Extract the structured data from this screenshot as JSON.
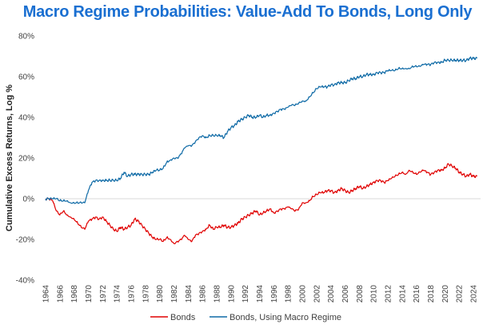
{
  "chart_data": {
    "type": "line",
    "title": "Macro Regime Probabilities: Value-Add To Bonds, Long Only",
    "xlabel": "",
    "ylabel": "Cumulative Excess Returns, Log %",
    "xlim": [
      1964,
      2025
    ],
    "ylim": [
      -40,
      80
    ],
    "y_ticks": [
      "-40%",
      "-20%",
      "0%",
      "20%",
      "40%",
      "60%",
      "80%"
    ],
    "y_tick_values": [
      -40,
      -20,
      0,
      20,
      40,
      60,
      80
    ],
    "x_ticks": [
      "1964",
      "1966",
      "1968",
      "1970",
      "1972",
      "1974",
      "1976",
      "1978",
      "1980",
      "1982",
      "1984",
      "1986",
      "1988",
      "1990",
      "1992",
      "1994",
      "1996",
      "1998",
      "2000",
      "2002",
      "2004",
      "2006",
      "2008",
      "2010",
      "2012",
      "2014",
      "2016",
      "2018",
      "2020",
      "2022",
      "2024"
    ],
    "grid": false,
    "legend_position": "bottom",
    "series": [
      {
        "name": "Bonds",
        "color": "#e00000",
        "x": [
          1964.0,
          1964.5,
          1965.0,
          1965.5,
          1966.0,
          1966.5,
          1967.0,
          1967.5,
          1968.0,
          1968.5,
          1969.0,
          1969.5,
          1970.0,
          1970.5,
          1971.0,
          1971.5,
          1972.0,
          1972.5,
          1973.0,
          1973.5,
          1974.0,
          1974.5,
          1975.0,
          1975.5,
          1976.0,
          1976.5,
          1977.0,
          1977.5,
          1978.0,
          1978.5,
          1979.0,
          1979.5,
          1980.0,
          1980.5,
          1981.0,
          1981.5,
          1982.0,
          1982.5,
          1983.0,
          1983.5,
          1984.0,
          1984.5,
          1985.0,
          1985.5,
          1986.0,
          1986.5,
          1987.0,
          1987.5,
          1988.0,
          1988.5,
          1989.0,
          1989.5,
          1990.0,
          1990.5,
          1991.0,
          1991.5,
          1992.0,
          1992.5,
          1993.0,
          1993.5,
          1994.0,
          1994.5,
          1995.0,
          1995.5,
          1996.0,
          1996.5,
          1997.0,
          1997.5,
          1998.0,
          1998.5,
          1999.0,
          1999.5,
          2000.0,
          2000.5,
          2001.0,
          2001.5,
          2002.0,
          2002.5,
          2003.0,
          2003.5,
          2004.0,
          2004.5,
          2005.0,
          2005.5,
          2006.0,
          2006.5,
          2007.0,
          2007.5,
          2008.0,
          2008.5,
          2009.0,
          2009.5,
          2010.0,
          2010.5,
          2011.0,
          2011.5,
          2012.0,
          2012.5,
          2013.0,
          2013.5,
          2014.0,
          2014.5,
          2015.0,
          2015.5,
          2016.0,
          2016.5,
          2017.0,
          2017.5,
          2018.0,
          2018.5,
          2019.0,
          2019.5,
          2020.0,
          2020.5,
          2021.0,
          2021.5,
          2022.0,
          2022.5,
          2023.0,
          2023.5,
          2024.0,
          2024.5
        ],
        "values": [
          0,
          0,
          -1,
          -6,
          -8,
          -6,
          -8,
          -9,
          -10,
          -12,
          -14,
          -15,
          -11,
          -10,
          -9,
          -10,
          -9,
          -11,
          -13,
          -15,
          -16,
          -14,
          -15,
          -14,
          -13,
          -10,
          -11,
          -13,
          -15,
          -17,
          -19,
          -20,
          -20,
          -21,
          -19,
          -20,
          -22,
          -21,
          -20,
          -18,
          -20,
          -21,
          -18,
          -17,
          -16,
          -15,
          -13,
          -15,
          -14,
          -14,
          -13,
          -14,
          -14,
          -13,
          -12,
          -10,
          -9,
          -8,
          -7,
          -6,
          -8,
          -7,
          -6,
          -5,
          -7,
          -6,
          -5,
          -5,
          -4,
          -5,
          -6,
          -5,
          -2,
          -2,
          -1,
          1,
          2,
          3,
          3,
          4,
          4,
          3,
          4,
          5,
          4,
          3,
          4,
          5,
          6,
          5,
          6,
          7,
          8,
          9,
          9,
          8,
          9,
          10,
          11,
          12,
          13,
          12,
          14,
          13,
          12,
          13,
          14,
          13,
          12,
          13,
          14,
          14,
          15,
          17,
          16,
          15,
          13,
          12,
          11,
          12,
          11,
          11
        ]
      },
      {
        "name": "Bonds, Using Macro Regime",
        "color": "#0e6aa6",
        "x": [
          1964.0,
          1964.5,
          1965.0,
          1965.5,
          1966.0,
          1966.5,
          1967.0,
          1967.5,
          1968.0,
          1968.5,
          1969.0,
          1969.5,
          1970.0,
          1970.5,
          1971.0,
          1971.5,
          1972.0,
          1972.5,
          1973.0,
          1973.5,
          1974.0,
          1974.5,
          1975.0,
          1975.5,
          1976.0,
          1976.5,
          1977.0,
          1977.5,
          1978.0,
          1978.5,
          1979.0,
          1979.5,
          1980.0,
          1980.5,
          1981.0,
          1981.5,
          1982.0,
          1982.5,
          1983.0,
          1983.5,
          1984.0,
          1984.5,
          1985.0,
          1985.5,
          1986.0,
          1986.5,
          1987.0,
          1987.5,
          1988.0,
          1988.5,
          1989.0,
          1989.5,
          1990.0,
          1990.5,
          1991.0,
          1991.5,
          1992.0,
          1992.5,
          1993.0,
          1993.5,
          1994.0,
          1994.5,
          1995.0,
          1995.5,
          1996.0,
          1996.5,
          1997.0,
          1997.5,
          1998.0,
          1998.5,
          1999.0,
          1999.5,
          2000.0,
          2000.5,
          2001.0,
          2001.5,
          2002.0,
          2002.5,
          2003.0,
          2003.5,
          2004.0,
          2004.5,
          2005.0,
          2005.5,
          2006.0,
          2006.5,
          2007.0,
          2007.5,
          2008.0,
          2008.5,
          2009.0,
          2009.5,
          2010.0,
          2010.5,
          2011.0,
          2011.5,
          2012.0,
          2012.5,
          2013.0,
          2013.5,
          2014.0,
          2014.5,
          2015.0,
          2015.5,
          2016.0,
          2016.5,
          2017.0,
          2017.5,
          2018.0,
          2018.5,
          2019.0,
          2019.5,
          2020.0,
          2020.5,
          2021.0,
          2021.5,
          2022.0,
          2022.5,
          2023.0,
          2023.5,
          2024.0,
          2024.5
        ],
        "values": [
          0,
          0,
          0,
          0,
          -1,
          -1,
          -1,
          -2,
          -2,
          -2,
          -2,
          -2,
          4,
          8,
          9,
          9,
          9,
          9,
          9,
          9,
          9,
          10,
          13,
          11,
          12,
          12,
          12,
          12,
          12,
          12,
          13,
          14,
          14,
          15,
          18,
          19,
          20,
          20,
          22,
          25,
          26,
          26,
          28,
          30,
          31,
          30,
          31,
          31,
          31,
          31,
          30,
          33,
          35,
          36,
          38,
          39,
          40,
          41,
          40,
          40,
          41,
          40,
          41,
          41,
          42,
          43,
          44,
          44,
          45,
          46,
          46,
          47,
          48,
          48,
          50,
          52,
          54,
          55,
          55,
          55,
          56,
          56,
          57,
          57,
          57,
          58,
          59,
          59,
          60,
          60,
          61,
          61,
          61,
          62,
          62,
          62,
          63,
          63,
          63,
          64,
          64,
          64,
          64,
          65,
          65,
          65,
          66,
          66,
          66,
          67,
          67,
          67,
          68,
          68,
          68,
          68,
          68,
          68,
          68,
          69,
          69,
          69
        ]
      }
    ]
  }
}
